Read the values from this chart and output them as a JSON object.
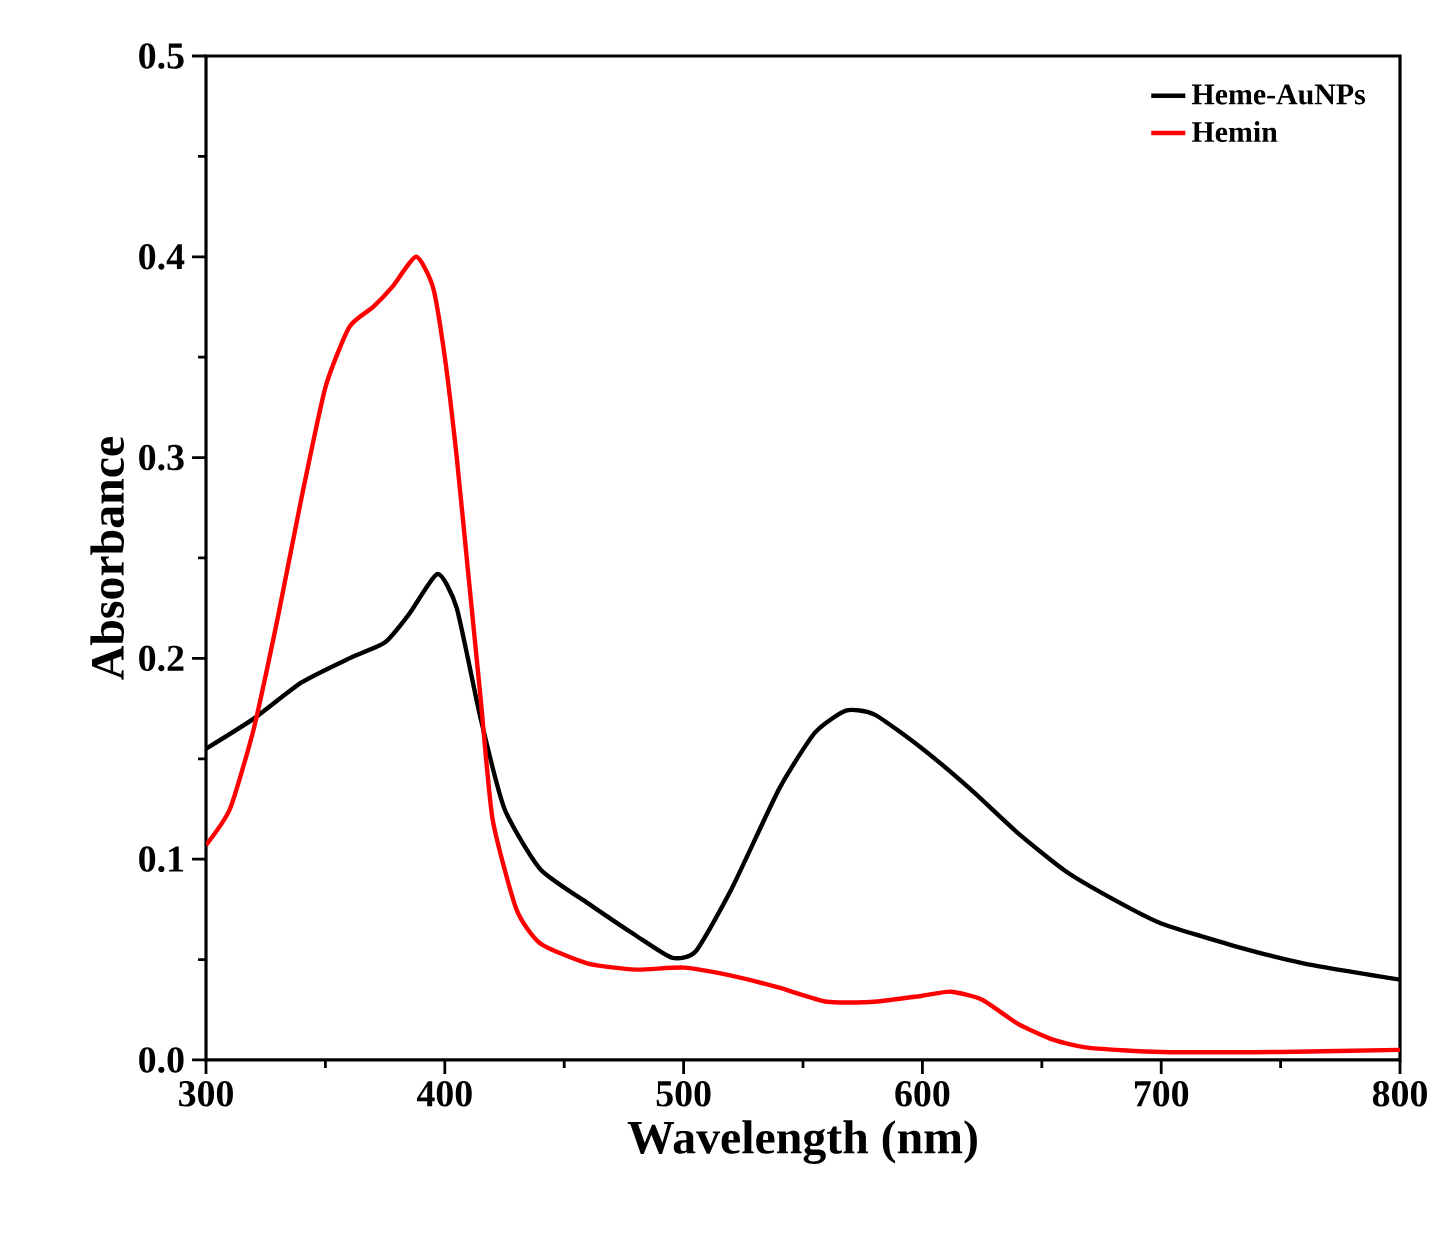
{
  "chart_data": {
    "type": "line",
    "xlabel": "Wavelength (nm)",
    "ylabel": "Absorbance",
    "xlim": [
      300,
      800
    ],
    "ylim": [
      0,
      0.5
    ],
    "xticks": [
      300,
      400,
      500,
      600,
      700,
      800
    ],
    "yticks": [
      {
        "value": 0,
        "label": "0.0"
      },
      0.1,
      0.2,
      0.3,
      0.4,
      0.5
    ],
    "legend": "top right",
    "grid": false,
    "marker": "none",
    "line_style": "solid",
    "series": [
      {
        "name": "Heme-AuNPs",
        "color": "#000000",
        "x": [
          300,
          320,
          340,
          360,
          375,
          385,
          397,
          405,
          415,
          425,
          440,
          460,
          480,
          495,
          505,
          520,
          540,
          555,
          568,
          580,
          600,
          620,
          640,
          660,
          680,
          700,
          730,
          760,
          800
        ],
        "values": [
          0.155,
          0.17,
          0.188,
          0.2,
          0.208,
          0.222,
          0.242,
          0.225,
          0.17,
          0.125,
          0.095,
          0.078,
          0.062,
          0.051,
          0.054,
          0.085,
          0.135,
          0.163,
          0.174,
          0.172,
          0.155,
          0.135,
          0.113,
          0.094,
          0.08,
          0.068,
          0.057,
          0.048,
          0.04
        ]
      },
      {
        "name": "Hemin",
        "color": "#ff0000",
        "x": [
          300,
          310,
          320,
          330,
          340,
          350,
          360,
          370,
          378,
          388,
          395,
          400,
          405,
          410,
          415,
          420,
          430,
          440,
          460,
          480,
          500,
          520,
          540,
          560,
          580,
          600,
          612,
          625,
          640,
          655,
          670,
          700,
          750,
          800
        ],
        "values": [
          0.107,
          0.125,
          0.165,
          0.22,
          0.28,
          0.335,
          0.365,
          0.375,
          0.385,
          0.4,
          0.385,
          0.35,
          0.3,
          0.24,
          0.18,
          0.12,
          0.075,
          0.058,
          0.048,
          0.045,
          0.046,
          0.042,
          0.036,
          0.029,
          0.029,
          0.032,
          0.034,
          0.03,
          0.018,
          0.01,
          0.006,
          0.004,
          0.004,
          0.005
        ]
      }
    ]
  }
}
